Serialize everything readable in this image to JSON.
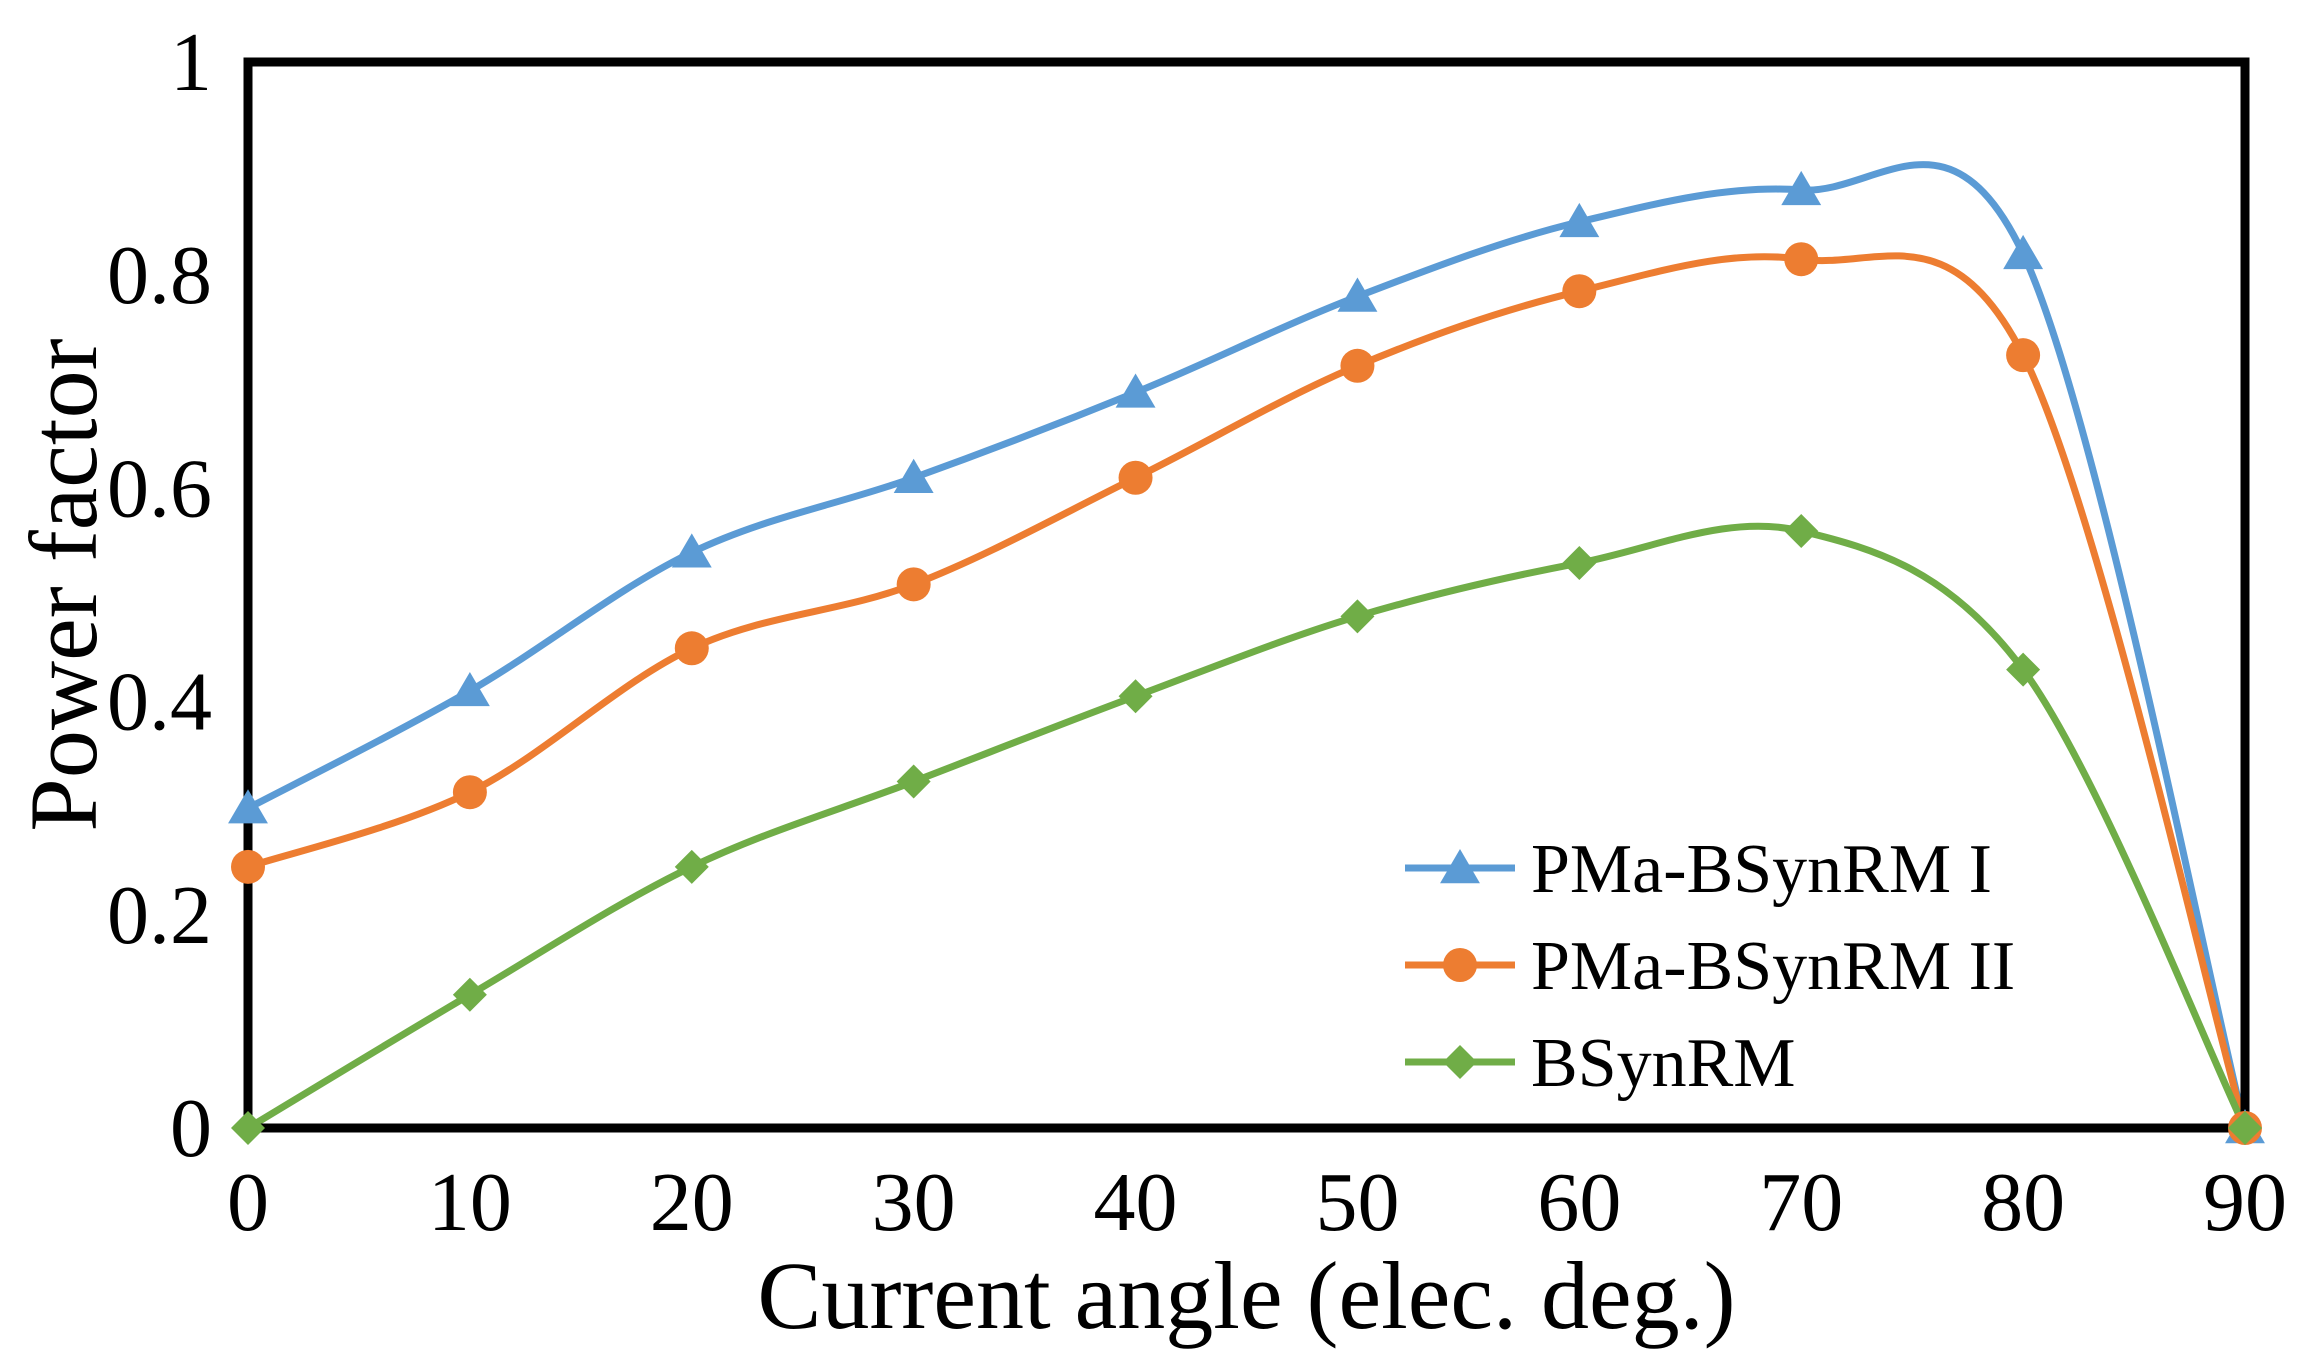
{
  "chart_data": {
    "type": "line",
    "title": "",
    "xlabel": "Current angle (elec. deg.)",
    "ylabel": "Power factor",
    "x": [
      0,
      10,
      20,
      30,
      40,
      50,
      60,
      70,
      80,
      90
    ],
    "xlim": [
      0,
      90
    ],
    "ylim": [
      0,
      1
    ],
    "xticks": [
      "0",
      "10",
      "20",
      "30",
      "40",
      "50",
      "60",
      "70",
      "80",
      "90"
    ],
    "yticks": [
      "0",
      "0.2",
      "0.4",
      "0.6",
      "0.8",
      "1"
    ],
    "grid": false,
    "legend_position": "lower-right",
    "series": [
      {
        "name": "PMa-BSynRM I",
        "color": "#5b9bd5",
        "marker": "triangle",
        "values": [
          0.3,
          0.41,
          0.54,
          0.61,
          0.69,
          0.78,
          0.85,
          0.88,
          0.82,
          0.0
        ]
      },
      {
        "name": "PMa-BSynRM II",
        "color": "#ed7d31",
        "marker": "circle",
        "values": [
          0.245,
          0.315,
          0.45,
          0.51,
          0.61,
          0.715,
          0.785,
          0.815,
          0.725,
          0.0
        ]
      },
      {
        "name": "BSynRM",
        "color": "#70ad47",
        "marker": "diamond",
        "values": [
          0.0,
          0.125,
          0.245,
          0.325,
          0.405,
          0.48,
          0.53,
          0.56,
          0.43,
          0.0
        ]
      }
    ]
  }
}
